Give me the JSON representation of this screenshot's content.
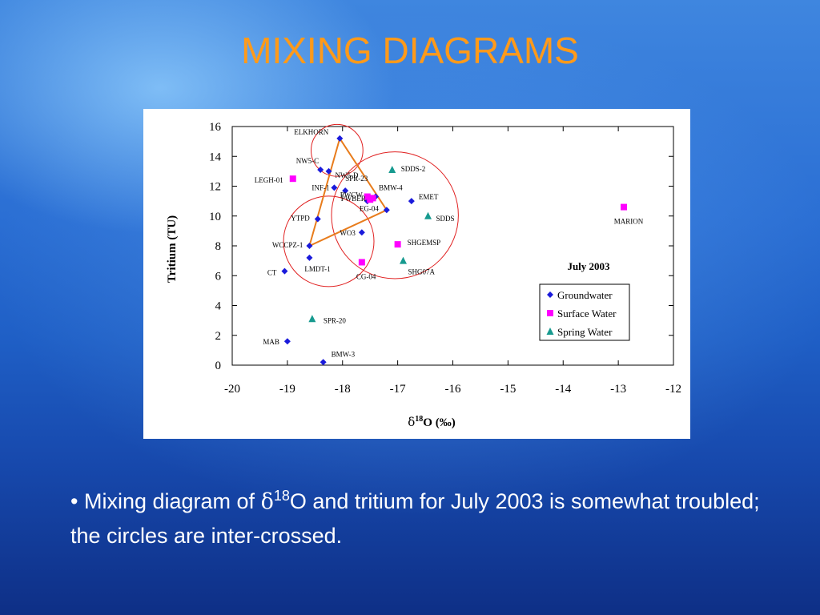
{
  "slide": {
    "title": "MIXING DIAGRAMS",
    "caption": {
      "bullet": "•",
      "pre": "Mixing diagram of ",
      "delta": "δ",
      "sup": "18",
      "post": "O and tritium for July 2003 is somewhat troubled; the circles are inter-crossed."
    }
  },
  "chart_data": {
    "type": "scatter",
    "title": "July 2003",
    "xlabel": {
      "delta": "δ",
      "sup": "18",
      "rest": "O (‰)"
    },
    "ylabel": "Tritium (TU)",
    "xlim": [
      -20,
      -12
    ],
    "ylim": [
      0,
      16
    ],
    "xticks": [
      -20,
      -19,
      -18,
      -17,
      -16,
      -15,
      -14,
      -13,
      -12
    ],
    "yticks": [
      0,
      2,
      4,
      6,
      8,
      10,
      12,
      14,
      16
    ],
    "legend_position": "right",
    "grid": false,
    "series": [
      {
        "name": "Groundwater",
        "marker": "diamond",
        "color": "#1a1adb",
        "points": [
          {
            "label": "ELKHORN",
            "x": -18.05,
            "y": 15.2
          },
          {
            "label": "NW5-C",
            "x": -18.4,
            "y": 13.1
          },
          {
            "label": "NW5-D",
            "x": -18.25,
            "y": 13.0
          },
          {
            "label": "INF-1",
            "x": -18.15,
            "y": 11.9
          },
          {
            "label": "SPR-23",
            "x": -17.95,
            "y": 11.7
          },
          {
            "label": "BMW-4",
            "x": -17.4,
            "y": 11.3
          },
          {
            "label": "EMET",
            "x": -16.75,
            "y": 11.0
          },
          {
            "label": "PWBER",
            "x": -17.55,
            "y": 11.0
          },
          {
            "label": "EG-04",
            "x": -17.2,
            "y": 10.4
          },
          {
            "label": "YTPD",
            "x": -18.45,
            "y": 9.8
          },
          {
            "label": "WO3",
            "x": -17.65,
            "y": 8.9
          },
          {
            "label": "WCCPZ-1",
            "x": -18.6,
            "y": 8.0
          },
          {
            "label": "LMDT-1",
            "x": -18.6,
            "y": 7.2
          },
          {
            "label": "CT",
            "x": -19.05,
            "y": 6.3
          },
          {
            "label": "MAB",
            "x": -19.0,
            "y": 1.6
          },
          {
            "label": "BMW-3",
            "x": -18.35,
            "y": 0.2
          }
        ]
      },
      {
        "name": "Surface Water",
        "marker": "square",
        "color": "#ff00ff",
        "points": [
          {
            "label": "LEGH-01",
            "x": -18.9,
            "y": 12.5
          },
          {
            "label": "PWCW",
            "x": -17.55,
            "y": 11.3
          },
          {
            "label": "",
            "x": -17.5,
            "y": 11.1
          },
          {
            "label": "",
            "x": -17.45,
            "y": 11.2
          },
          {
            "label": "MARION",
            "x": -12.9,
            "y": 10.6
          },
          {
            "label": "SHGEMSP",
            "x": -17.0,
            "y": 8.1
          },
          {
            "label": "CG-04",
            "x": -17.65,
            "y": 6.9
          }
        ]
      },
      {
        "name": "Spring Water",
        "marker": "triangle",
        "color": "#179a8f",
        "points": [
          {
            "label": "SDDS-2",
            "x": -17.1,
            "y": 13.1
          },
          {
            "label": "SDDS",
            "x": -16.45,
            "y": 10.0
          },
          {
            "label": "SHG07A",
            "x": -16.9,
            "y": 7.0
          },
          {
            "label": "SPR-20",
            "x": -18.55,
            "y": 3.1
          }
        ]
      }
    ],
    "mixing_triangle": {
      "color": "#e87c1c",
      "vertices": [
        [
          -18.05,
          15.2
        ],
        [
          -17.2,
          10.4
        ],
        [
          -18.6,
          8.0
        ]
      ]
    },
    "circles": {
      "color": "#e02020",
      "items": [
        {
          "cx": -18.1,
          "cy": 14.4,
          "r": 0.47
        },
        {
          "cx": -17.05,
          "cy": 10.05,
          "r": 1.15
        },
        {
          "cx": -18.25,
          "cy": 8.3,
          "r": 0.82
        }
      ]
    }
  }
}
